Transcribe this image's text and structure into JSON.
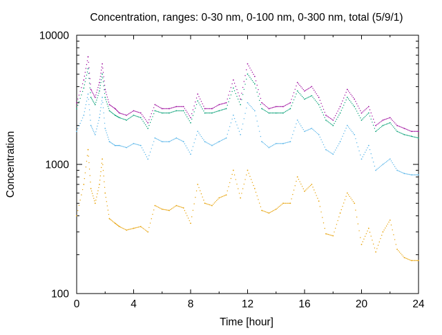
{
  "chart_data": {
    "type": "scatter",
    "title": "Concentration, ranges: 0-30 nm, 0-100 nm, 0-300 nm, total (5/9/1)",
    "xlabel": "Time [hour]",
    "ylabel": "Concentration",
    "xlim": [
      0,
      24
    ],
    "ylim": [
      100,
      10000
    ],
    "y_scale": "log",
    "grid": false,
    "legend": "none",
    "x_ticks": [
      "0",
      "4",
      "8",
      "12",
      "16",
      "20",
      "24"
    ],
    "y_ticks": [
      "100",
      "1000",
      "10000"
    ],
    "series": [
      {
        "color": "#990099",
        "x": [
          0,
          0.5,
          0.8,
          1.0,
          1.3,
          1.6,
          1.8,
          2.0,
          2.3,
          2.7,
          3.0,
          3.5,
          4.0,
          4.5,
          5.0,
          5.5,
          6.0,
          6.5,
          7.0,
          7.5,
          8.0,
          8.5,
          9.0,
          9.5,
          10.0,
          10.5,
          11.0,
          11.5,
          12.0,
          12.5,
          13.0,
          13.5,
          14.0,
          14.5,
          15.0,
          15.5,
          16.0,
          16.5,
          17.0,
          17.5,
          18.0,
          18.5,
          19.0,
          19.5,
          20.0,
          20.5,
          21.0,
          21.5,
          22.0,
          22.5,
          23.0,
          23.5,
          24.0
        ],
        "values": [
          3000,
          4500,
          6800,
          3800,
          3300,
          4300,
          6000,
          3800,
          2900,
          2700,
          2500,
          2400,
          2600,
          2500,
          2100,
          2900,
          2700,
          2700,
          2800,
          2800,
          2300,
          3500,
          2700,
          2700,
          2900,
          3000,
          4500,
          3200,
          6000,
          4800,
          3000,
          2700,
          2800,
          2800,
          3000,
          4300,
          3700,
          4000,
          3300,
          2400,
          2200,
          2800,
          3800,
          3200,
          2500,
          2800,
          2000,
          2200,
          2300,
          2000,
          1900,
          1800,
          1800
        ]
      },
      {
        "color": "#009e73",
        "x": [
          0,
          0.5,
          0.8,
          1.0,
          1.3,
          1.6,
          1.8,
          2.0,
          2.3,
          2.7,
          3.0,
          3.5,
          4.0,
          4.5,
          5.0,
          5.5,
          6.0,
          6.5,
          7.0,
          7.5,
          8.0,
          8.5,
          9.0,
          9.5,
          10.0,
          10.5,
          11.0,
          11.5,
          12.0,
          12.5,
          13.0,
          13.5,
          14.0,
          14.5,
          15.0,
          15.5,
          16.0,
          16.5,
          17.0,
          17.5,
          18.0,
          18.5,
          19.0,
          19.5,
          20.0,
          20.5,
          21.0,
          21.5,
          22.0,
          22.5,
          23.0,
          23.5,
          24.0
        ],
        "values": [
          2700,
          3900,
          5500,
          3300,
          2900,
          3700,
          5000,
          3300,
          2600,
          2400,
          2300,
          2200,
          2400,
          2300,
          1900,
          2600,
          2500,
          2500,
          2600,
          2600,
          2100,
          3100,
          2500,
          2500,
          2600,
          2700,
          3900,
          2900,
          5000,
          4200,
          2700,
          2500,
          2500,
          2500,
          2700,
          3700,
          3200,
          3400,
          2900,
          2200,
          2000,
          2500,
          3300,
          2800,
          2200,
          2500,
          1800,
          2000,
          2100,
          1800,
          1700,
          1650,
          1600
        ]
      },
      {
        "color": "#56b4e9",
        "x": [
          0,
          0.5,
          0.8,
          1.0,
          1.3,
          1.6,
          1.8,
          2.0,
          2.3,
          2.7,
          3.0,
          3.5,
          4.0,
          4.5,
          5.0,
          5.5,
          6.0,
          6.5,
          7.0,
          7.5,
          8.0,
          8.5,
          9.0,
          9.5,
          10.0,
          10.5,
          11.0,
          11.5,
          12.0,
          12.5,
          13.0,
          13.5,
          14.0,
          14.5,
          15.0,
          15.5,
          16.0,
          16.5,
          17.0,
          17.5,
          18.0,
          18.5,
          19.0,
          19.5,
          20.0,
          20.5,
          21.0,
          21.5,
          22.0,
          22.5,
          23.0,
          23.5,
          24.0
        ],
        "values": [
          1800,
          2400,
          3500,
          2000,
          1700,
          2300,
          3300,
          1900,
          1500,
          1400,
          1400,
          1350,
          1450,
          1400,
          1100,
          1600,
          1500,
          1500,
          1600,
          1500,
          1200,
          1800,
          1500,
          1400,
          1500,
          1600,
          2400,
          1700,
          3000,
          2600,
          1500,
          1350,
          1450,
          1450,
          1500,
          2200,
          1800,
          1900,
          1700,
          1300,
          1200,
          1500,
          2000,
          1700,
          1100,
          1400,
          900,
          1000,
          1100,
          900,
          850,
          830,
          830
        ]
      },
      {
        "color": "#e69f00",
        "x": [
          0,
          0.5,
          0.8,
          1.0,
          1.3,
          1.6,
          1.8,
          2.0,
          2.3,
          2.7,
          3.0,
          3.5,
          4.0,
          4.5,
          5.0,
          5.5,
          6.0,
          6.5,
          7.0,
          7.5,
          8.0,
          8.5,
          9.0,
          9.5,
          10.0,
          10.5,
          11.0,
          11.5,
          12.0,
          12.5,
          13.0,
          13.5,
          14.0,
          14.5,
          15.0,
          15.5,
          16.0,
          16.5,
          17.0,
          17.5,
          18.0,
          18.5,
          19.0,
          19.5,
          20.0,
          20.5,
          21.0,
          21.5,
          22.0,
          22.5,
          23.0,
          23.5,
          24.0
        ],
        "values": [
          400,
          700,
          1300,
          650,
          500,
          700,
          1100,
          600,
          380,
          350,
          330,
          310,
          320,
          330,
          300,
          480,
          450,
          440,
          480,
          460,
          350,
          700,
          500,
          480,
          550,
          580,
          900,
          550,
          900,
          650,
          440,
          420,
          450,
          500,
          500,
          800,
          620,
          700,
          520,
          290,
          280,
          420,
          600,
          500,
          240,
          320,
          210,
          300,
          370,
          220,
          190,
          180,
          180
        ]
      }
    ]
  }
}
